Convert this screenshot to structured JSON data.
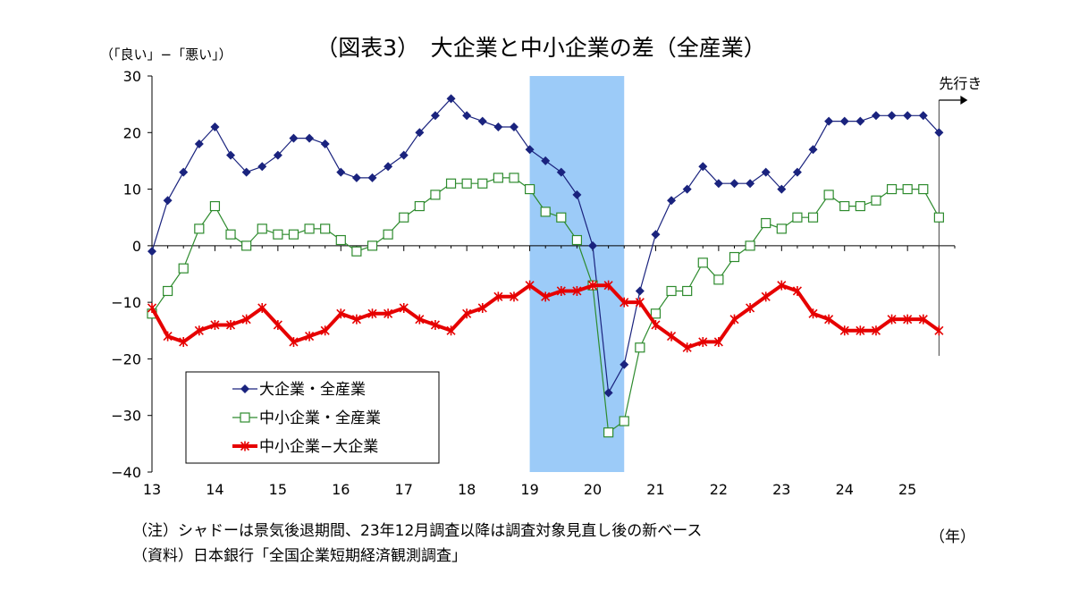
{
  "chart_data": {
    "type": "line",
    "title": "（図表3）　大企業と中小企業の差（全産業）",
    "ylabel": "（「良い」−「悪い」）",
    "xlabel": "（年）",
    "forecast_label": "先行き",
    "ylim": [
      -40,
      30
    ],
    "y_ticks": [
      30,
      20,
      10,
      0,
      -10,
      -20,
      -30,
      -40
    ],
    "y_tick_labels": [
      "30",
      "20",
      "10",
      "0",
      "−10",
      "−20",
      "−30",
      "−40"
    ],
    "x_ticks": [
      2013,
      2014,
      2015,
      2016,
      2017,
      2018,
      2019,
      2020,
      2021,
      2022,
      2023,
      2024,
      2025
    ],
    "x_tick_labels": [
      "13",
      "14",
      "15",
      "16",
      "17",
      "18",
      "19",
      "20",
      "21",
      "22",
      "23",
      "24",
      "25"
    ],
    "xlim": [
      2013,
      2025.75
    ],
    "recession_shading": [
      2019.0,
      2020.5
    ],
    "forecast_x": 2025.5,
    "x": [
      2013.0,
      2013.25,
      2013.5,
      2013.75,
      2014.0,
      2014.25,
      2014.5,
      2014.75,
      2015.0,
      2015.25,
      2015.5,
      2015.75,
      2016.0,
      2016.25,
      2016.5,
      2016.75,
      2017.0,
      2017.25,
      2017.5,
      2017.75,
      2018.0,
      2018.25,
      2018.5,
      2018.75,
      2019.0,
      2019.25,
      2019.5,
      2019.75,
      2020.0,
      2020.25,
      2020.5,
      2020.75,
      2021.0,
      2021.25,
      2021.5,
      2021.75,
      2022.0,
      2022.25,
      2022.5,
      2022.75,
      2023.0,
      2023.25,
      2023.5,
      2023.75,
      2024.0,
      2024.25,
      2024.5,
      2024.75,
      2025.0,
      2025.25,
      2025.5
    ],
    "series": [
      {
        "name": "大企業・全産業",
        "color": "#1a237e",
        "marker": "diamond",
        "values": [
          -1,
          8,
          13,
          18,
          21,
          16,
          13,
          14,
          16,
          19,
          19,
          18,
          13,
          12,
          12,
          14,
          16,
          20,
          23,
          26,
          23,
          22,
          21,
          21,
          17,
          15,
          13,
          9,
          0,
          -26,
          -21,
          -8,
          2,
          8,
          10,
          14,
          11,
          11,
          11,
          13,
          10,
          13,
          17,
          22,
          22,
          22,
          23,
          23,
          23,
          23,
          20
        ]
      },
      {
        "name": "中小企業・全産業",
        "color": "#2e8b2e",
        "marker": "square",
        "values": [
          -12,
          -8,
          -4,
          3,
          7,
          2,
          0,
          3,
          2,
          2,
          3,
          3,
          1,
          -1,
          0,
          2,
          5,
          7,
          9,
          11,
          11,
          11,
          12,
          12,
          10,
          6,
          5,
          1,
          -7,
          -33,
          -31,
          -18,
          -12,
          -8,
          -8,
          -3,
          -6,
          -2,
          0,
          4,
          3,
          5,
          5,
          9,
          7,
          7,
          8,
          10,
          10,
          10,
          5
        ]
      },
      {
        "name": "中小企業−大企業",
        "color": "#e60000",
        "marker": "asterisk",
        "values": [
          -11,
          -16,
          -17,
          -15,
          -14,
          -14,
          -13,
          -11,
          -14,
          -17,
          -16,
          -15,
          -12,
          -13,
          -12,
          -12,
          -11,
          -13,
          -14,
          -15,
          -12,
          -11,
          -9,
          -9,
          -7,
          -9,
          -8,
          -8,
          -7,
          -7,
          -10,
          -10,
          -14,
          -16,
          -18,
          -17,
          -17,
          -13,
          -11,
          -9,
          -7,
          -8,
          -12,
          -13,
          -15,
          -15,
          -15,
          -13,
          -13,
          -13,
          -15
        ]
      }
    ]
  },
  "notes": [
    "（注）シャドーは景気後退期間、23年12月調査以降は調査対象見直し後の新ベース",
    "（資料）日本銀行「全国企業短期経済観測調査」"
  ]
}
